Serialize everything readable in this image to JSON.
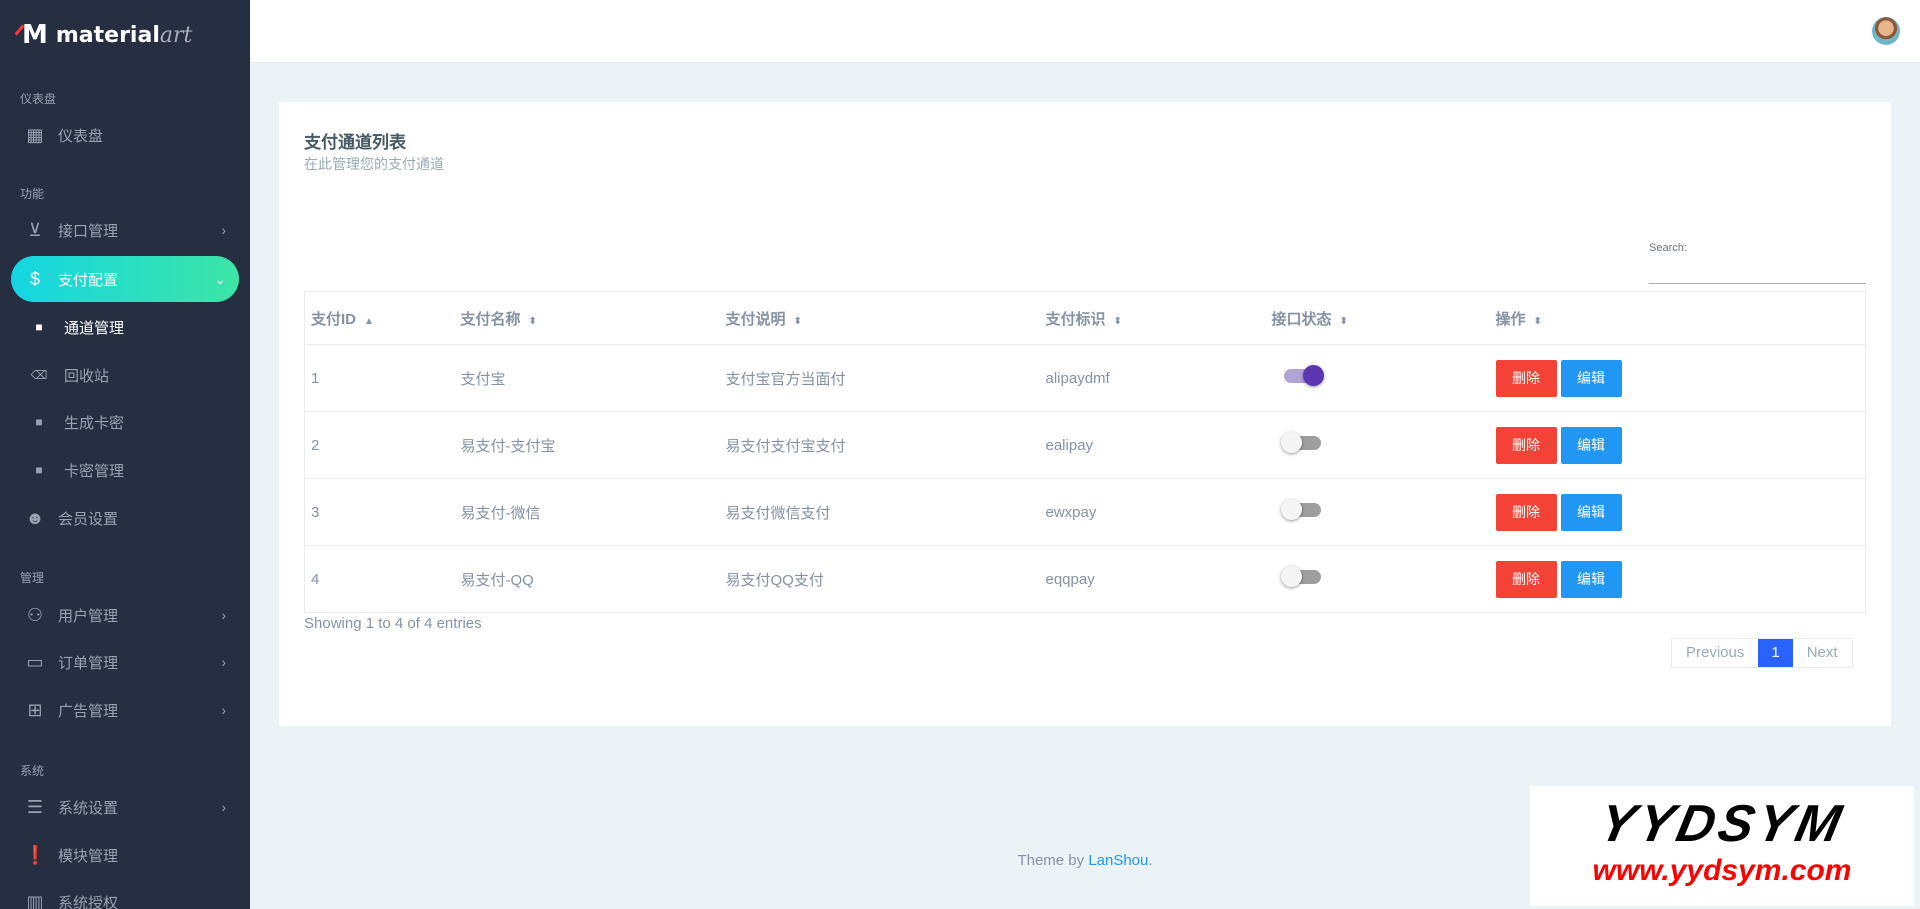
{
  "brand": {
    "name": "material",
    "suffix": "art"
  },
  "sidebar": {
    "sections": [
      "仪表盘",
      "功能",
      "管理",
      "系统"
    ],
    "items": [
      {
        "label": "仪表盘",
        "icon": "dashboard-icon"
      },
      {
        "label": "接口管理",
        "icon": "inbox-download-icon"
      },
      {
        "label": "支付配置",
        "icon": "dollar-icon"
      },
      {
        "label": "通道管理",
        "icon": "copy-icon"
      },
      {
        "label": "回收站",
        "icon": "backspace-icon"
      },
      {
        "label": "生成卡密",
        "icon": "copy-icon"
      },
      {
        "label": "卡密管理",
        "icon": "copy-icon"
      },
      {
        "label": "会员设置",
        "icon": "face-icon"
      },
      {
        "label": "用户管理",
        "icon": "users-icon"
      },
      {
        "label": "订单管理",
        "icon": "credit-card-icon"
      },
      {
        "label": "广告管理",
        "icon": "gamepad-icon"
      },
      {
        "label": "系统设置",
        "icon": "receipt-icon"
      },
      {
        "label": "模块管理",
        "icon": "clipboard-alert-icon"
      },
      {
        "label": "系统授权",
        "icon": "grid-icon"
      }
    ]
  },
  "card": {
    "title": "支付通道列表",
    "subtitle": "在此管理您的支付通道"
  },
  "search": {
    "label": "Search:",
    "value": ""
  },
  "table": {
    "headers": [
      "支付ID",
      "支付名称",
      "支付说明",
      "支付标识",
      "接口状态",
      "操作"
    ],
    "rows": [
      {
        "id": "1",
        "name": "支付宝",
        "desc": "支付宝官方当面付",
        "ident": "alipaydmf",
        "enabled": true
      },
      {
        "id": "2",
        "name": "易支付-支付宝",
        "desc": "易支付支付宝支付",
        "ident": "ealipay",
        "enabled": false
      },
      {
        "id": "3",
        "name": "易支付-微信",
        "desc": "易支付微信支付",
        "ident": "ewxpay",
        "enabled": false
      },
      {
        "id": "4",
        "name": "易支付-QQ",
        "desc": "易支付QQ支付",
        "ident": "eqqpay",
        "enabled": false
      }
    ],
    "delete_label": "删除",
    "edit_label": "编辑"
  },
  "info": "Showing 1 to 4 of 4 entries",
  "pager": {
    "prev": "Previous",
    "page": "1",
    "next": "Next"
  },
  "footer": {
    "text": "Theme by ",
    "link": "LanShou",
    "end": "."
  },
  "watermark": {
    "line1": "YYDSYM",
    "line2": "www.yydsym.com"
  },
  "colors": {
    "sidebar": "#262f42",
    "accent_start": "#14d6e3",
    "accent_end": "#3de5a5",
    "delete": "#f44336",
    "edit": "#2196f3",
    "page_active": "#2962ff",
    "toggle_on": "#5e35b1"
  }
}
